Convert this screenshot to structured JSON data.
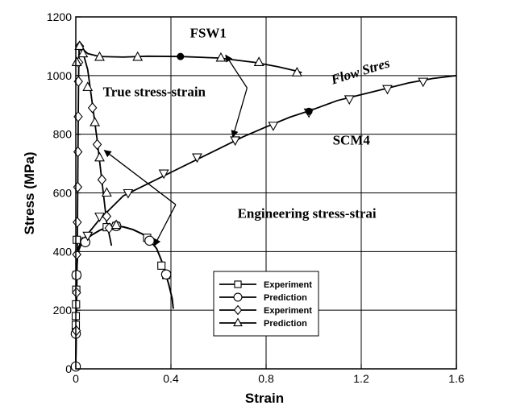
{
  "chart_data": {
    "type": "line",
    "title": "",
    "xlabel": "Strain",
    "ylabel": "Stress (MPa)",
    "xlim": [
      0,
      1.6
    ],
    "ylim": [
      0,
      1200
    ],
    "xticks": [
      0,
      0.4,
      0.8,
      1.2,
      1.6
    ],
    "xtick_labels": [
      "0",
      "0.4",
      "0.8",
      "1.2",
      "1.6"
    ],
    "yticks": [
      0,
      200,
      400,
      600,
      800,
      1000,
      1200
    ],
    "ytick_labels": [
      "0",
      "200",
      "400",
      "600",
      "800",
      "1000",
      "1200"
    ],
    "grid": true,
    "legend_position": "lower-center",
    "legend": [
      {
        "label": "Experiment",
        "marker": "square"
      },
      {
        "label": "Prediction",
        "marker": "circle"
      },
      {
        "label": "Experiment",
        "marker": "diamond"
      },
      {
        "label": "Prediction",
        "marker": "triangle-up"
      }
    ],
    "annotations": [
      {
        "text": "FSW1",
        "x": 0.48,
        "y": 1130
      },
      {
        "text": "True stress-strain",
        "x": 0.33,
        "y": 930
      },
      {
        "text": "Flow Stres",
        "x": 1.08,
        "y": 970
      },
      {
        "text": "SCM4",
        "x": 1.08,
        "y": 765
      },
      {
        "text": "Engineering stress-strai",
        "x": 0.68,
        "y": 515
      }
    ],
    "arrows": [
      {
        "from": [
          0.72,
          958
        ],
        "to": [
          0.63,
          1070
        ]
      },
      {
        "from": [
          0.72,
          958
        ],
        "to": [
          0.66,
          790
        ]
      },
      {
        "from": [
          0.42,
          560
        ],
        "to": [
          0.12,
          745
        ]
      },
      {
        "from": [
          0.42,
          560
        ],
        "to": [
          0.33,
          420
        ]
      }
    ],
    "highlight_points": [
      {
        "label": "FSW1",
        "x": 0.44,
        "y": 1065
      },
      {
        "label": "SCM4",
        "x": 0.98,
        "y": 878
      }
    ],
    "series": [
      {
        "curve": [
          [
            0,
            0
          ],
          [
            0.003,
            300
          ],
          [
            0.006,
            370
          ],
          [
            0.01,
            400
          ],
          [
            0.02,
            420
          ],
          [
            0.04,
            440
          ],
          [
            0.07,
            458
          ],
          [
            0.1,
            472
          ],
          [
            0.13,
            482
          ],
          [
            0.16,
            486
          ],
          [
            0.2,
            484
          ],
          [
            0.24,
            475
          ],
          [
            0.28,
            460
          ],
          [
            0.31,
            440
          ],
          [
            0.34,
            410
          ],
          [
            0.36,
            370
          ],
          [
            0.375,
            330
          ],
          [
            0.39,
            290
          ],
          [
            0.405,
            240
          ],
          [
            0.41,
            205
          ]
        ],
        "markers": [
          [
            0.004,
            440
          ],
          [
            0.04,
            435
          ],
          [
            0.13,
            483
          ],
          [
            0.17,
            487
          ],
          [
            0.3,
            447
          ],
          [
            0.36,
            352
          ],
          [
            0.38,
            320
          ],
          [
            0.003,
            320
          ],
          [
            0.002,
            270
          ],
          [
            0.001,
            220
          ],
          [
            0,
            180
          ],
          [
            0,
            150
          ],
          [
            0,
            125
          ]
        ],
        "marker": "square"
      },
      {
        "curve": [
          [
            0,
            0
          ],
          [
            0.003,
            300
          ],
          [
            0.006,
            370
          ],
          [
            0.01,
            400
          ],
          [
            0.02,
            420
          ],
          [
            0.04,
            440
          ],
          [
            0.07,
            458
          ],
          [
            0.1,
            472
          ],
          [
            0.13,
            482
          ],
          [
            0.16,
            486
          ],
          [
            0.2,
            484
          ],
          [
            0.24,
            475
          ],
          [
            0.28,
            460
          ],
          [
            0.31,
            440
          ],
          [
            0.34,
            410
          ],
          [
            0.36,
            370
          ],
          [
            0.375,
            330
          ],
          [
            0.39,
            290
          ],
          [
            0.405,
            240
          ],
          [
            0.41,
            205
          ]
        ],
        "markers": [
          [
            0.04,
            432
          ],
          [
            0.17,
            487
          ],
          [
            0.31,
            437
          ],
          [
            0.38,
            322
          ],
          [
            0.003,
            320
          ],
          [
            0,
            120
          ],
          [
            0,
            8
          ]
        ],
        "marker": "circle"
      },
      {
        "curve": [
          [
            0,
            0
          ],
          [
            0.002,
            130
          ],
          [
            0.004,
            260
          ],
          [
            0.006,
            390
          ],
          [
            0.008,
            620
          ],
          [
            0.01,
            850
          ],
          [
            0.012,
            1000
          ],
          [
            0.014,
            1090
          ],
          [
            0.016,
            1100
          ],
          [
            0.03,
            1080
          ],
          [
            0.05,
            1020
          ],
          [
            0.07,
            900
          ],
          [
            0.09,
            780
          ],
          [
            0.11,
            640
          ],
          [
            0.13,
            500
          ],
          [
            0.15,
            420
          ]
        ],
        "markers": [
          [
            0.002,
            130
          ],
          [
            0.003,
            260
          ],
          [
            0.004,
            390
          ],
          [
            0.006,
            500
          ],
          [
            0.008,
            620
          ],
          [
            0.009,
            740
          ],
          [
            0.01,
            860
          ],
          [
            0.011,
            980
          ],
          [
            0.012,
            1045
          ],
          [
            0.016,
            1100
          ],
          [
            0.07,
            890
          ],
          [
            0.09,
            765
          ],
          [
            0.11,
            645
          ],
          [
            0.13,
            520
          ],
          [
            0.14,
            480
          ]
        ],
        "marker": "diamond"
      },
      {
        "curve": [
          [
            0.016,
            1100
          ],
          [
            0.05,
            1075
          ],
          [
            0.1,
            1065
          ],
          [
            0.2,
            1063
          ],
          [
            0.3,
            1066
          ],
          [
            0.44,
            1065
          ],
          [
            0.6,
            1060
          ],
          [
            0.75,
            1045
          ],
          [
            0.85,
            1030
          ],
          [
            0.93,
            1015
          ],
          [
            0.95,
            1010
          ]
        ],
        "markers": [
          [
            0.004,
            1045
          ],
          [
            0.016,
            1100
          ],
          [
            0.1,
            1063
          ],
          [
            0.26,
            1063
          ],
          [
            0.61,
            1060
          ],
          [
            0.77,
            1045
          ],
          [
            0.93,
            1010
          ],
          [
            0.03,
            1075
          ],
          [
            0.05,
            960
          ],
          [
            0.08,
            840
          ],
          [
            0.1,
            720
          ],
          [
            0.13,
            600
          ],
          [
            0.17,
            490
          ]
        ],
        "marker": "triangle-up"
      },
      {
        "curve": [
          [
            0,
            390
          ],
          [
            0.02,
            430
          ],
          [
            0.05,
            460
          ],
          [
            0.1,
            510
          ],
          [
            0.2,
            590
          ],
          [
            0.3,
            630
          ],
          [
            0.4,
            670
          ],
          [
            0.5,
            710
          ],
          [
            0.6,
            750
          ],
          [
            0.7,
            790
          ],
          [
            0.8,
            825
          ],
          [
            0.9,
            858
          ],
          [
            1.0,
            885
          ],
          [
            1.1,
            915
          ],
          [
            1.2,
            935
          ],
          [
            1.3,
            955
          ],
          [
            1.4,
            975
          ],
          [
            1.5,
            990
          ],
          [
            1.6,
            1000
          ]
        ],
        "markers": [
          [
            0.05,
            455
          ],
          [
            0.1,
            520
          ],
          [
            0.22,
            600
          ],
          [
            0.37,
            667
          ],
          [
            0.51,
            722
          ],
          [
            0.67,
            780
          ],
          [
            0.83,
            830
          ],
          [
            0.98,
            875
          ],
          [
            1.15,
            920
          ],
          [
            1.31,
            955
          ],
          [
            1.46,
            980
          ]
        ],
        "marker": "triangle-down"
      }
    ]
  }
}
